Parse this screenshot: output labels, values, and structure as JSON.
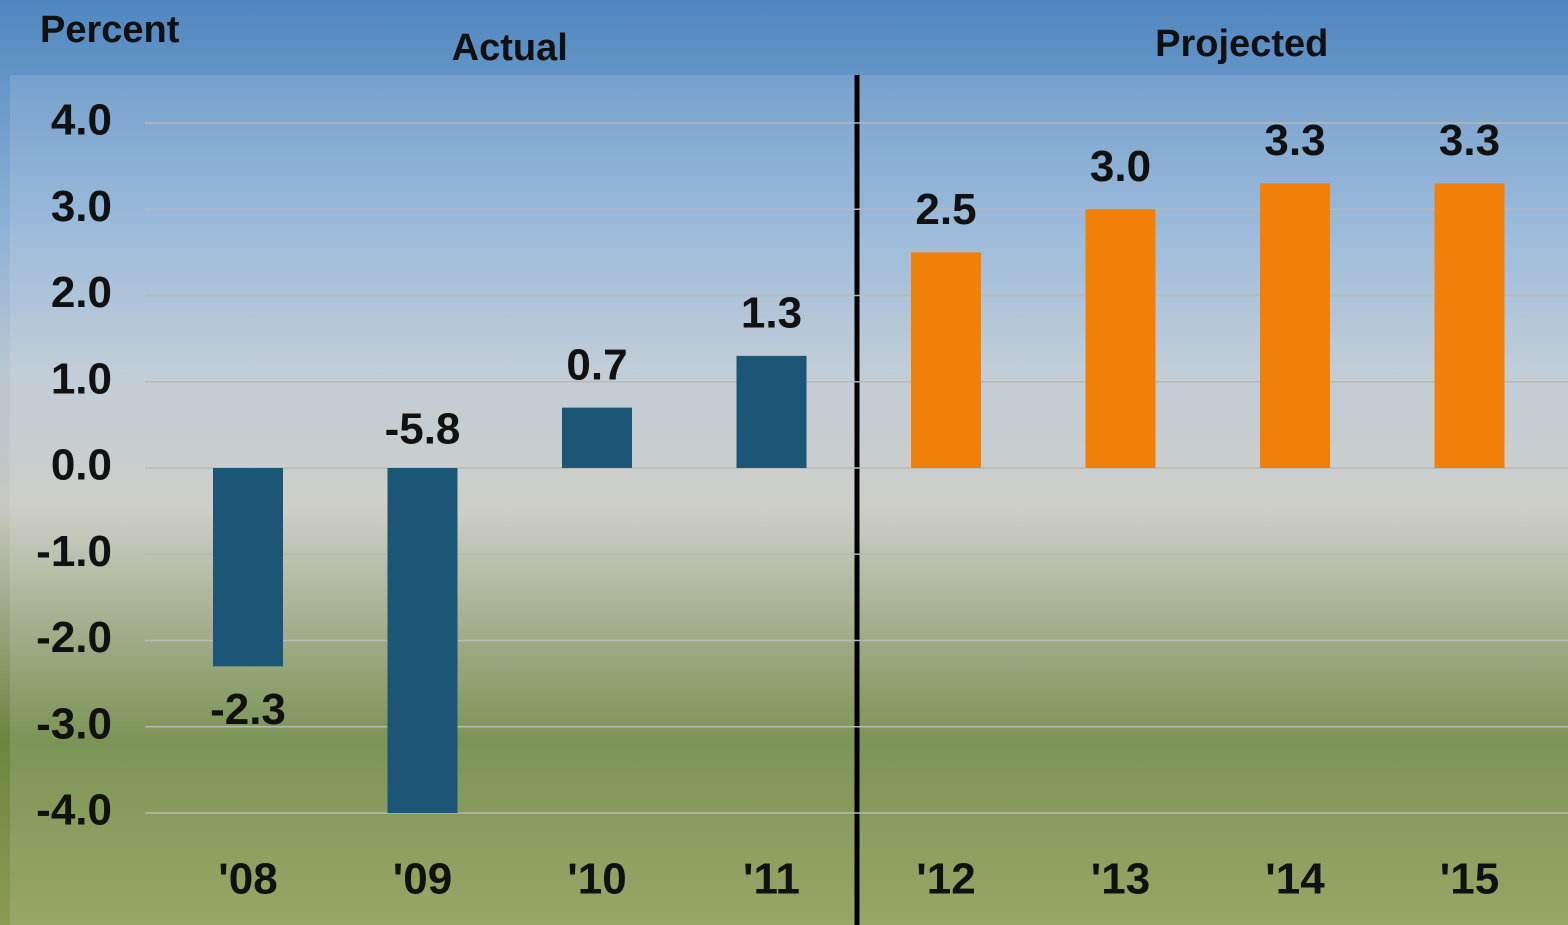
{
  "chart_data": {
    "type": "bar",
    "y_label": "Percent",
    "categories": [
      "'08",
      "'09",
      "'10",
      "'11",
      "'12",
      "'13",
      "'14",
      "'15"
    ],
    "series": [
      {
        "name": "Actual",
        "color": "#1b5676",
        "values": [
          -2.3,
          -5.8,
          0.7,
          1.3,
          null,
          null,
          null,
          null
        ],
        "value_labels": [
          "-2.3",
          "-5.8",
          "0.7",
          "1.3",
          null,
          null,
          null,
          null
        ]
      },
      {
        "name": "Projected",
        "color": "#f0800a",
        "values": [
          null,
          null,
          null,
          null,
          2.5,
          3.0,
          3.3,
          3.3
        ],
        "value_labels": [
          null,
          null,
          null,
          null,
          "2.5",
          "3.0",
          "3.3",
          "3.3"
        ]
      }
    ],
    "ylim": [
      -4,
      4
    ],
    "yticks": [
      {
        "value": -4,
        "label": "-4.0"
      },
      {
        "value": -3,
        "label": "-3.0"
      },
      {
        "value": -2,
        "label": "-2.0"
      },
      {
        "value": -1,
        "label": "-1.0"
      },
      {
        "value": 0,
        "label": "0.0"
      },
      {
        "value": 1,
        "label": "1.0"
      },
      {
        "value": 2,
        "label": "2.0"
      },
      {
        "value": 3,
        "label": "3.0"
      },
      {
        "value": 4,
        "label": "4.0"
      }
    ],
    "grid": true
  }
}
